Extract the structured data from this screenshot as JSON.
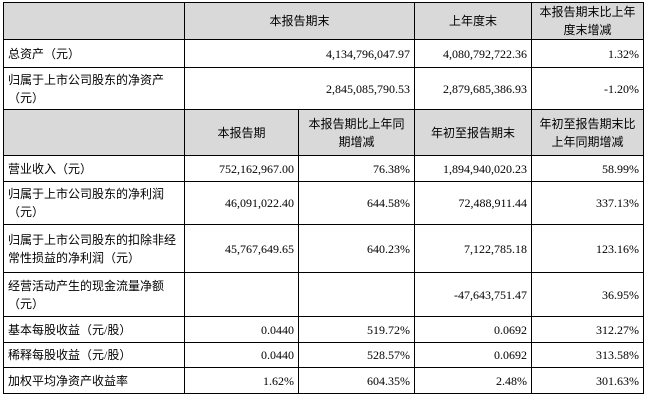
{
  "top_header": {
    "col1": "本报告期末",
    "col2": "上年度末",
    "col3": "本报告期末比上年度末增减"
  },
  "top_rows": [
    {
      "label": "总资产（元）",
      "current": "4,134,796,047.97",
      "prior": "4,080,792,722.36",
      "change": "1.32%"
    },
    {
      "label": "归属于上市公司股东的净资产（元）",
      "current": "2,845,085,790.53",
      "prior": "2,879,685,386.93",
      "change": "-1.20%"
    }
  ],
  "mid_header": {
    "col1": "本报告期",
    "col2": "本报告期比上年同期增减",
    "col3": "年初至报告期末",
    "col4": "年初至报告期末比上年同期增减"
  },
  "rows": [
    {
      "label": "营业收入（元）",
      "period": "752,162,967.00",
      "period_change": "76.38%",
      "ytd": "1,894,940,020.23",
      "ytd_change": "58.99%"
    },
    {
      "label": "归属于上市公司股东的净利润（元）",
      "period": "46,091,022.40",
      "period_change": "644.58%",
      "ytd": "72,488,911.44",
      "ytd_change": "337.13%"
    },
    {
      "label": "归属于上市公司股东的扣除非经常性损益的净利润（元）",
      "period": "45,767,649.65",
      "period_change": "640.23%",
      "ytd": "7,122,785.18",
      "ytd_change": "123.16%"
    },
    {
      "label": "经营活动产生的现金流量净额（元）",
      "period": "",
      "period_change": "",
      "ytd": "-47,643,751.47",
      "ytd_change": "36.95%"
    },
    {
      "label": "基本每股收益（元/股）",
      "period": "0.0440",
      "period_change": "519.72%",
      "ytd": "0.0692",
      "ytd_change": "312.27%"
    },
    {
      "label": "稀释每股收益（元/股）",
      "period": "0.0440",
      "period_change": "528.57%",
      "ytd": "0.0692",
      "ytd_change": "313.58%"
    },
    {
      "label": "加权平均净资产收益率",
      "period": "1.62%",
      "period_change": "604.35%",
      "ytd": "2.48%",
      "ytd_change": "301.63%"
    }
  ]
}
